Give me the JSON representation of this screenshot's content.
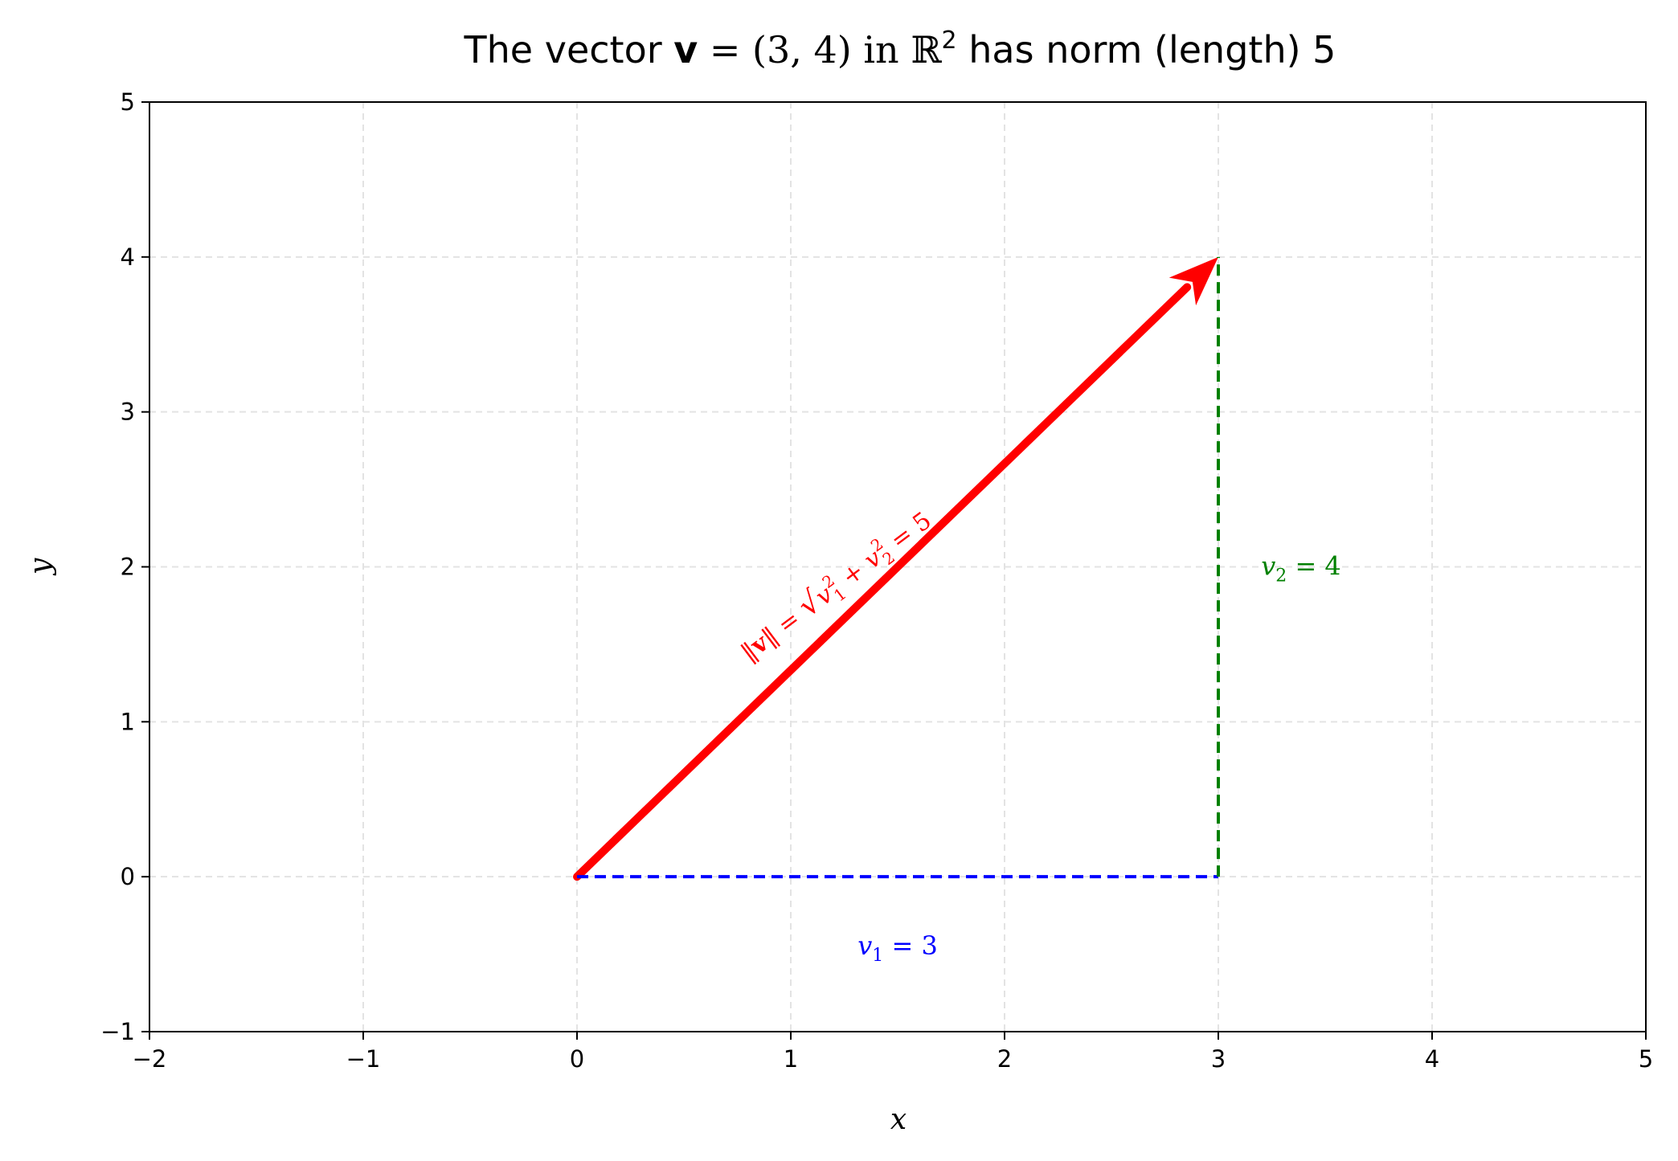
{
  "chart_data": {
    "type": "line",
    "title": "The vector v = (3, 4) in ℝ² has norm (length) 5",
    "title_parts": {
      "prefix": "The vector ",
      "vector_symbol": "v",
      "equals": " = (3, 4) in ",
      "space_symbol": "ℝ",
      "space_exponent": "2",
      "suffix": " has norm (length) 5"
    },
    "xlabel": "x",
    "ylabel": "y",
    "xlim": [
      -2,
      5
    ],
    "ylim": [
      -1,
      5
    ],
    "xticks": [
      -2,
      -1,
      0,
      1,
      2,
      3,
      4,
      5
    ],
    "yticks": [
      -1,
      0,
      1,
      2,
      3,
      4,
      5
    ],
    "xtick_labels": [
      "−2",
      "−1",
      "0",
      "1",
      "2",
      "3",
      "4",
      "5"
    ],
    "ytick_labels": [
      "−1",
      "0",
      "1",
      "2",
      "3",
      "4",
      "5"
    ],
    "grid": true,
    "grid_style": "dashed",
    "series": [
      {
        "kind": "arrow",
        "from": [
          0,
          0
        ],
        "to": [
          3,
          4
        ],
        "color": "#ff0000",
        "label": "‖v‖ = √(v₁² + v₂²) = 5"
      },
      {
        "kind": "dashed-line",
        "from": [
          0,
          0
        ],
        "to": [
          3,
          0
        ],
        "color": "#0000ff",
        "label": "v₁ = 3"
      },
      {
        "kind": "dashed-line",
        "from": [
          3,
          0
        ],
        "to": [
          3,
          4
        ],
        "color": "#008000",
        "label": "v₂ = 4"
      }
    ],
    "annotations": [
      {
        "name": "norm-label",
        "text": "‖v‖ = √(v₁² + v₂²) = 5",
        "at": [
          1.2,
          2.1
        ],
        "color": "#ff0000",
        "rotation_deg": -36.9
      },
      {
        "name": "v1-label",
        "text": "v₁ = 3",
        "at": [
          1.5,
          -0.45
        ],
        "color": "#0000ff"
      },
      {
        "name": "v2-label",
        "text": "v₂ = 4",
        "at": [
          3.2,
          2.0
        ],
        "color": "#008000"
      }
    ],
    "norm_label_parts": {
      "norm_open": "‖",
      "norm_symbol": "v",
      "norm_close": "‖ = ",
      "radical": "√",
      "v1": "v",
      "v1_sup": "2",
      "v1_sub": "1",
      "plus": " + ",
      "v2": "v",
      "v2_sup": "2",
      "v2_sub": "2",
      "result": " = 5"
    },
    "v1_label_parts": {
      "var": "v",
      "sub": "1",
      "rest": " = 3"
    },
    "v2_label_parts": {
      "var": "v",
      "sub": "2",
      "rest": " = 4"
    }
  }
}
